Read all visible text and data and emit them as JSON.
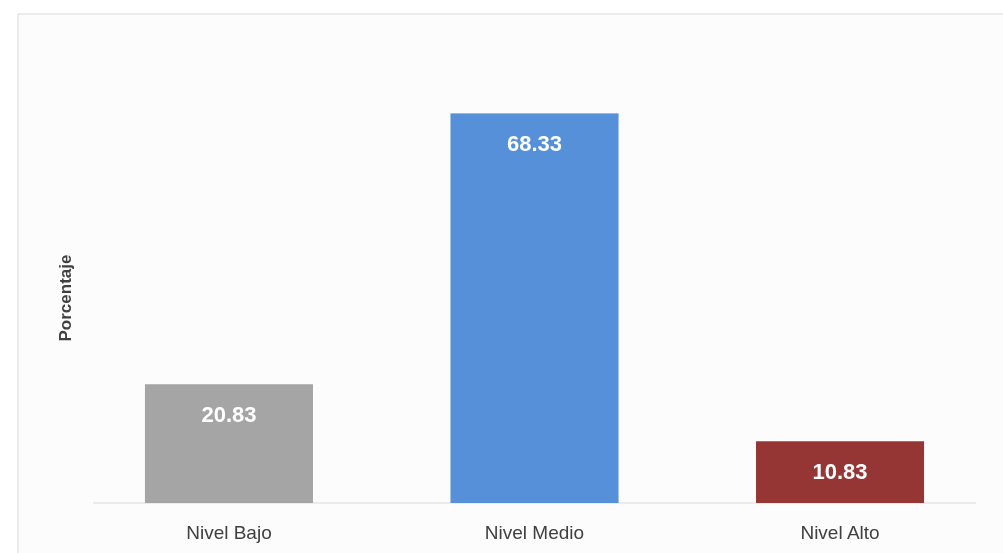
{
  "chart_data": {
    "type": "bar",
    "ylabel": "Porcentaje",
    "categories": [
      "Nivel Bajo",
      "Nivel Medio",
      "Nivel Alto"
    ],
    "values": [
      20.83,
      68.33,
      10.83
    ],
    "colors": [
      "#a5a5a5",
      "#5590d8",
      "#963634"
    ],
    "data_labels": true
  }
}
